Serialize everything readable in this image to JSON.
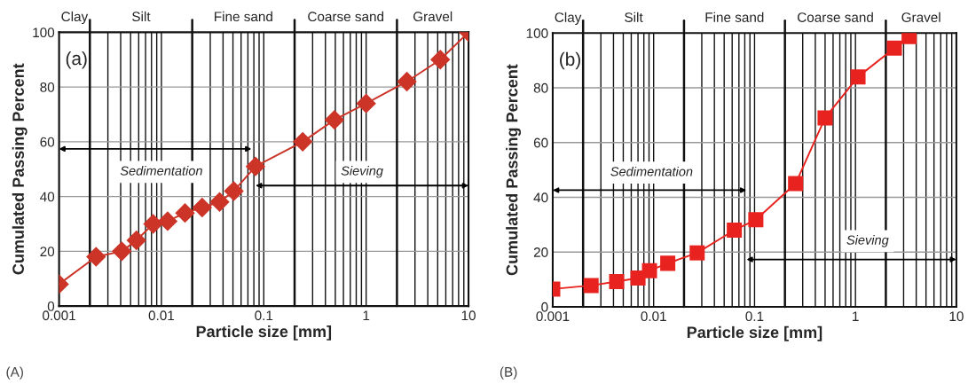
{
  "chart_data": [
    {
      "type": "line",
      "xlabel": "Particle size [mm]",
      "ylabel": "Cumulated Passing Percent",
      "log": "x",
      "grid": true,
      "marker": "diamond",
      "xlim": [
        0.001,
        10
      ],
      "xticks": [
        0.001,
        0.01,
        0.1,
        1,
        10
      ],
      "ylim": [
        0,
        100
      ],
      "yticks": [
        0,
        20,
        40,
        60,
        80,
        100
      ],
      "ref_lines": [
        {
          "axis": "x",
          "value": 0.002
        },
        {
          "axis": "x",
          "value": 0.02
        },
        {
          "axis": "x",
          "value": 0.2
        },
        {
          "axis": "x",
          "value": 2
        }
      ],
      "series": [
        {
          "color": "#cc3428",
          "x": [
            0.001,
            0.0023,
            0.0041,
            0.0057,
            0.0083,
            0.0115,
            0.017,
            0.025,
            0.037,
            0.051,
            0.083,
            0.24,
            0.49,
            1.0,
            2.5,
            5.3,
            10
          ],
          "values": [
            8,
            18,
            20,
            24,
            30,
            31,
            34,
            36,
            38,
            42,
            51,
            60,
            68,
            74,
            82,
            90,
            100
          ]
        }
      ],
      "annotations": [
        "(a)",
        "(A)",
        "Clay",
        "Silt",
        "Fine sand",
        "Coarse sand",
        "Gravel",
        "Sedimentation",
        "Sieving"
      ]
    },
    {
      "type": "line",
      "xlabel": "Particle size [mm]",
      "ylabel": "Cumulated Passing Percent",
      "log": "x",
      "grid": true,
      "marker": "square",
      "xlim": [
        0.001,
        10
      ],
      "xticks": [
        0.001,
        0.01,
        0.1,
        1,
        10
      ],
      "ylim": [
        0,
        100
      ],
      "yticks": [
        0,
        20,
        40,
        60,
        80,
        100
      ],
      "ref_lines": [
        {
          "axis": "x",
          "value": 0.002
        },
        {
          "axis": "x",
          "value": 0.02
        },
        {
          "axis": "x",
          "value": 0.2
        },
        {
          "axis": "x",
          "value": 2
        }
      ],
      "series": [
        {
          "color": "#e8231f",
          "x": [
            0.001,
            0.0024,
            0.0043,
            0.007,
            0.0091,
            0.0138,
            0.027,
            0.063,
            0.103,
            0.255,
            0.5,
            1.06,
            2.43,
            3.4
          ],
          "values": [
            6.5,
            7.8,
            9.2,
            10.5,
            13.2,
            15.9,
            19.7,
            28,
            31.8,
            45,
            69,
            84,
            94.5,
            98.7
          ]
        }
      ],
      "annotations": [
        "(b)",
        "(B)",
        "Clay",
        "Silt",
        "Fine sand",
        "Coarse sand",
        "Gravel",
        "Sedimentation",
        "Sieving"
      ]
    }
  ]
}
